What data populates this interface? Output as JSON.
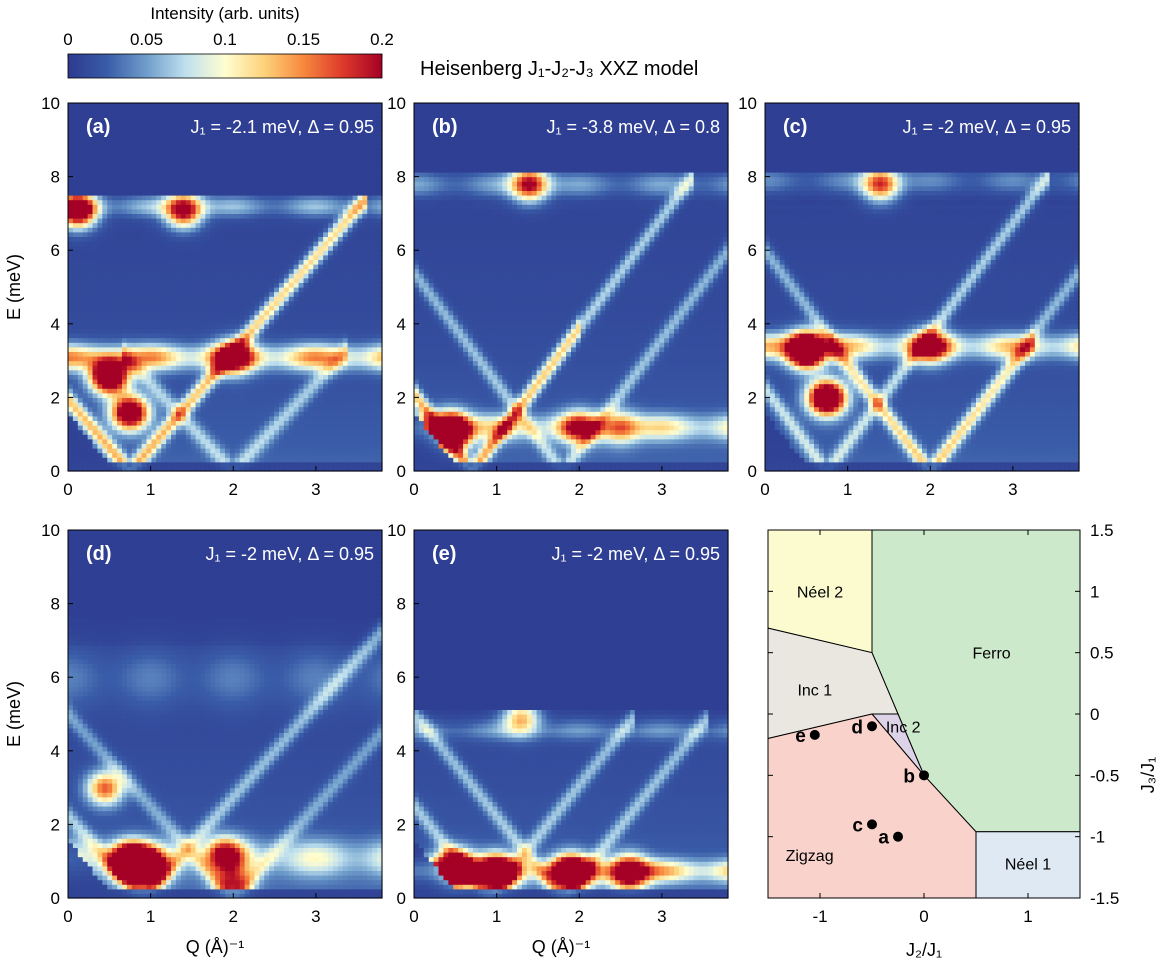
{
  "figure": {
    "title": "Heisenberg J₁-J₂-J₃  XXZ model",
    "colorbar": {
      "label": "Intensity (arb. units)",
      "min": 0,
      "max": 0.2,
      "ticks": [
        "0",
        "0.05",
        "0.1",
        "0.15",
        "0.2"
      ],
      "tick_values": [
        0,
        0.05,
        0.1,
        0.15,
        0.2
      ],
      "colormap_stops": [
        "#2d3a8f",
        "#3a5ca8",
        "#6f9dcb",
        "#bfe0ee",
        "#fffed0",
        "#fdd27a",
        "#f7883e",
        "#dd3a2a",
        "#a50026"
      ]
    }
  },
  "chart_data": [
    {
      "type": "heatmap",
      "panel": "(a)",
      "label": "J₁ = -2.1 meV, Δ = 0.95",
      "xlabel": "",
      "ylabel": "E (meV)",
      "xlim": [
        0,
        3.8
      ],
      "ylim": [
        0,
        10
      ],
      "xticks": [
        0,
        1,
        2,
        3
      ],
      "yticks": [
        0,
        2,
        4,
        6,
        8,
        10
      ],
      "features": {
        "flat_bands": [
          {
            "E": 3.1,
            "intensity": 0.14,
            "width": 0.35
          },
          {
            "E": 7.2,
            "intensity": 0.06,
            "width": 0.3
          }
        ],
        "hotspots": [
          {
            "Q": 0.5,
            "E": 2.6,
            "intensity": 0.3
          },
          {
            "Q": 0.75,
            "E": 1.6,
            "intensity": 0.25
          },
          {
            "Q": 0.12,
            "E": 7.1,
            "intensity": 0.25
          },
          {
            "Q": 1.4,
            "E": 7.1,
            "intensity": 0.2
          },
          {
            "Q": 2.0,
            "E": 3.1,
            "intensity": 0.16
          }
        ],
        "dispersions": [
          {
            "Q0": 0.75,
            "slope": 2.6,
            "Emax": 7.4,
            "intensity": 0.06
          },
          {
            "Q0": 0.75,
            "slope": -2.6,
            "Emax": 7.4,
            "intensity": 0.05
          },
          {
            "Q0": 2.0,
            "slope": 2.4,
            "Emax": 3.3,
            "intensity": 0.05
          }
        ],
        "edge_cutoff": 7.5
      }
    },
    {
      "type": "heatmap",
      "panel": "(b)",
      "label": "J₁ = -3.8 meV, Δ = 0.8",
      "xlabel": "",
      "ylabel": "",
      "xlim": [
        0,
        3.8
      ],
      "ylim": [
        0,
        10
      ],
      "xticks": [
        0,
        1,
        2,
        3
      ],
      "yticks": [
        0,
        2,
        4,
        6,
        8,
        10
      ],
      "features": {
        "flat_bands": [
          {
            "E": 1.2,
            "intensity": 0.1,
            "width": 0.35
          },
          {
            "E": 7.8,
            "intensity": 0.05,
            "width": 0.35
          }
        ],
        "hotspots": [
          {
            "Q": 0.45,
            "E": 1.1,
            "intensity": 0.35
          },
          {
            "Q": 1.4,
            "E": 7.8,
            "intensity": 0.18
          },
          {
            "Q": 2.0,
            "E": 1.2,
            "intensity": 0.12
          },
          {
            "Q": 2.5,
            "E": 1.2,
            "intensity": 0.1
          }
        ],
        "dispersions": [
          {
            "Q0": 0.7,
            "slope": 3.0,
            "Emax": 8.0,
            "intensity": 0.06
          },
          {
            "Q0": 1.8,
            "slope": -3.0,
            "Emax": 8.0,
            "intensity": 0.05
          },
          {
            "Q0": 0.7,
            "slope": -3.0,
            "Emax": 4.0,
            "intensity": 0.05
          }
        ],
        "edge_cutoff": 8.1
      }
    },
    {
      "type": "heatmap",
      "panel": "(c)",
      "label": "J₁ = -2 meV, Δ = 0.95",
      "xlabel": "",
      "ylabel": "",
      "xlim": [
        0,
        3.8
      ],
      "ylim": [
        0,
        10
      ],
      "xticks": [
        0,
        1,
        2,
        3
      ],
      "yticks": [
        0,
        2,
        4,
        6,
        8,
        10
      ],
      "features": {
        "flat_bands": [
          {
            "E": 3.4,
            "intensity": 0.12,
            "width": 0.35
          },
          {
            "E": 7.9,
            "intensity": 0.04,
            "width": 0.35
          }
        ],
        "hotspots": [
          {
            "Q": 0.5,
            "E": 3.3,
            "intensity": 0.35
          },
          {
            "Q": 0.75,
            "E": 2.0,
            "intensity": 0.3
          },
          {
            "Q": 1.4,
            "E": 7.8,
            "intensity": 0.16
          },
          {
            "Q": 2.0,
            "E": 3.4,
            "intensity": 0.15
          }
        ],
        "dispersions": [
          {
            "Q0": 0.75,
            "slope": 3.0,
            "Emax": 8.0,
            "intensity": 0.06
          },
          {
            "Q0": 2.0,
            "slope": -3.0,
            "Emax": 8.0,
            "intensity": 0.05
          },
          {
            "Q0": 2.0,
            "slope": 2.8,
            "Emax": 3.5,
            "intensity": 0.05
          }
        ],
        "edge_cutoff": 8.1
      }
    },
    {
      "type": "heatmap",
      "panel": "(d)",
      "label": "J₁ = -2 meV, Δ = 0.95",
      "xlabel": "Q (Å)⁻¹",
      "ylabel": "E (meV)",
      "xlim": [
        0,
        3.8
      ],
      "ylim": [
        0,
        10
      ],
      "xticks": [
        0,
        1,
        2,
        3
      ],
      "yticks": [
        0,
        2,
        4,
        6,
        8,
        10
      ],
      "features": {
        "flat_bands": [
          {
            "E": 1.1,
            "intensity": 0.08,
            "width": 0.5
          },
          {
            "E": 6.0,
            "intensity": 0.03,
            "width": 0.8
          }
        ],
        "hotspots": [
          {
            "Q": 0.75,
            "E": 1.0,
            "intensity": 0.35
          },
          {
            "Q": 0.95,
            "E": 0.8,
            "intensity": 0.3
          },
          {
            "Q": 0.45,
            "E": 3.0,
            "intensity": 0.15
          },
          {
            "Q": 1.9,
            "E": 1.2,
            "intensity": 0.15
          },
          {
            "Q": 2.0,
            "E": 0.4,
            "intensity": 0.14
          }
        ],
        "dispersions": [
          {
            "Q0": 0.9,
            "slope": 2.5,
            "Emax": 7.4,
            "intensity": 0.05
          },
          {
            "Q0": 2.0,
            "slope": -2.5,
            "Emax": 7.4,
            "intensity": 0.04
          }
        ],
        "edge_cutoff": 7.6
      }
    },
    {
      "type": "heatmap",
      "panel": "(e)",
      "label": "J₁ = -2 meV, Δ = 0.95",
      "xlabel": "Q (Å)⁻¹",
      "ylabel": "",
      "xlim": [
        0,
        3.8
      ],
      "ylim": [
        0,
        10
      ],
      "xticks": [
        0,
        1,
        2,
        3
      ],
      "yticks": [
        0,
        2,
        4,
        6,
        8,
        10
      ],
      "features": {
        "flat_bands": [
          {
            "E": 0.75,
            "intensity": 0.12,
            "width": 0.3
          },
          {
            "E": 4.6,
            "intensity": 0.04,
            "width": 0.3
          }
        ],
        "hotspots": [
          {
            "Q": 0.5,
            "E": 0.8,
            "intensity": 0.35
          },
          {
            "Q": 1.0,
            "E": 0.7,
            "intensity": 0.3
          },
          {
            "Q": 1.9,
            "E": 0.7,
            "intensity": 0.3
          },
          {
            "Q": 2.6,
            "E": 0.7,
            "intensity": 0.22
          },
          {
            "Q": 1.3,
            "E": 4.9,
            "intensity": 0.12
          }
        ],
        "dispersions": [
          {
            "Q0": 0.9,
            "slope": 2.8,
            "Emax": 5.0,
            "intensity": 0.05
          },
          {
            "Q0": 1.8,
            "slope": -2.8,
            "Emax": 5.0,
            "intensity": 0.05
          }
        ],
        "edge_cutoff": 5.1
      }
    },
    {
      "type": "phase_diagram",
      "panel": "",
      "xlabel": "J₂/J₁",
      "ylabel": "J₃/J₁",
      "xlim": [
        -1.5,
        1.5
      ],
      "ylim": [
        -1.5,
        1.5
      ],
      "xticks": [
        -1,
        0,
        1
      ],
      "xtick_labels": [
        "-1",
        "0",
        "1"
      ],
      "yticks": [
        -1.5,
        -1,
        -0.5,
        0,
        0.5,
        1,
        1.5
      ],
      "ytick_labels": [
        "-1.5",
        "-1",
        "-0.5",
        "0",
        "0.5",
        "1",
        "1.5"
      ],
      "regions": [
        {
          "name": "Néel 2",
          "color": "#fbfbcf",
          "polygon": [
            [
              -1.5,
              1.5
            ],
            [
              -0.5,
              1.5
            ],
            [
              -0.5,
              0.5
            ],
            [
              -1.5,
              0.7
            ]
          ],
          "label_at": [
            -1.0,
            1.0
          ]
        },
        {
          "name": "Ferro",
          "color": "#cde9cb",
          "polygon": [
            [
              -0.5,
              1.5
            ],
            [
              1.5,
              1.5
            ],
            [
              1.5,
              -0.96
            ],
            [
              0.5,
              -0.96
            ],
            [
              0,
              -0.5
            ],
            [
              -0.25,
              0
            ],
            [
              -0.5,
              0.5
            ]
          ],
          "label_at": [
            0.65,
            0.5
          ]
        },
        {
          "name": "Inc 1",
          "color": "#eae7e1",
          "polygon": [
            [
              -1.5,
              0.7
            ],
            [
              -0.5,
              0.5
            ],
            [
              -0.25,
              0
            ],
            [
              -0.5,
              0
            ],
            [
              -1.5,
              -0.2
            ]
          ],
          "label_at": [
            -1.05,
            0.2
          ]
        },
        {
          "name": "Inc 2",
          "color": "#dcd3e9",
          "polygon": [
            [
              -0.5,
              0
            ],
            [
              -0.25,
              0
            ],
            [
              0,
              -0.5
            ]
          ],
          "label_at": [
            -0.2,
            -0.1
          ]
        },
        {
          "name": "Zigzag",
          "color": "#f9d2cb",
          "polygon": [
            [
              -1.5,
              -0.2
            ],
            [
              -0.5,
              0
            ],
            [
              0,
              -0.5
            ],
            [
              0.5,
              -0.96
            ],
            [
              0.5,
              -1.5
            ],
            [
              -1.5,
              -1.5
            ]
          ],
          "label_at": [
            -1.1,
            -1.15
          ]
        },
        {
          "name": "Néel 1",
          "color": "#dfe9f4",
          "polygon": [
            [
              0.5,
              -0.96
            ],
            [
              1.5,
              -0.96
            ],
            [
              1.5,
              -1.5
            ],
            [
              0.5,
              -1.5
            ]
          ],
          "label_at": [
            1.0,
            -1.22
          ]
        }
      ],
      "points": [
        {
          "label": "a",
          "x": -0.25,
          "y": -1.0
        },
        {
          "label": "b",
          "x": 0.0,
          "y": -0.5
        },
        {
          "label": "c",
          "x": -0.5,
          "y": -0.9
        },
        {
          "label": "d",
          "x": -0.5,
          "y": -0.1
        },
        {
          "label": "e",
          "x": -1.05,
          "y": -0.17
        }
      ]
    }
  ]
}
